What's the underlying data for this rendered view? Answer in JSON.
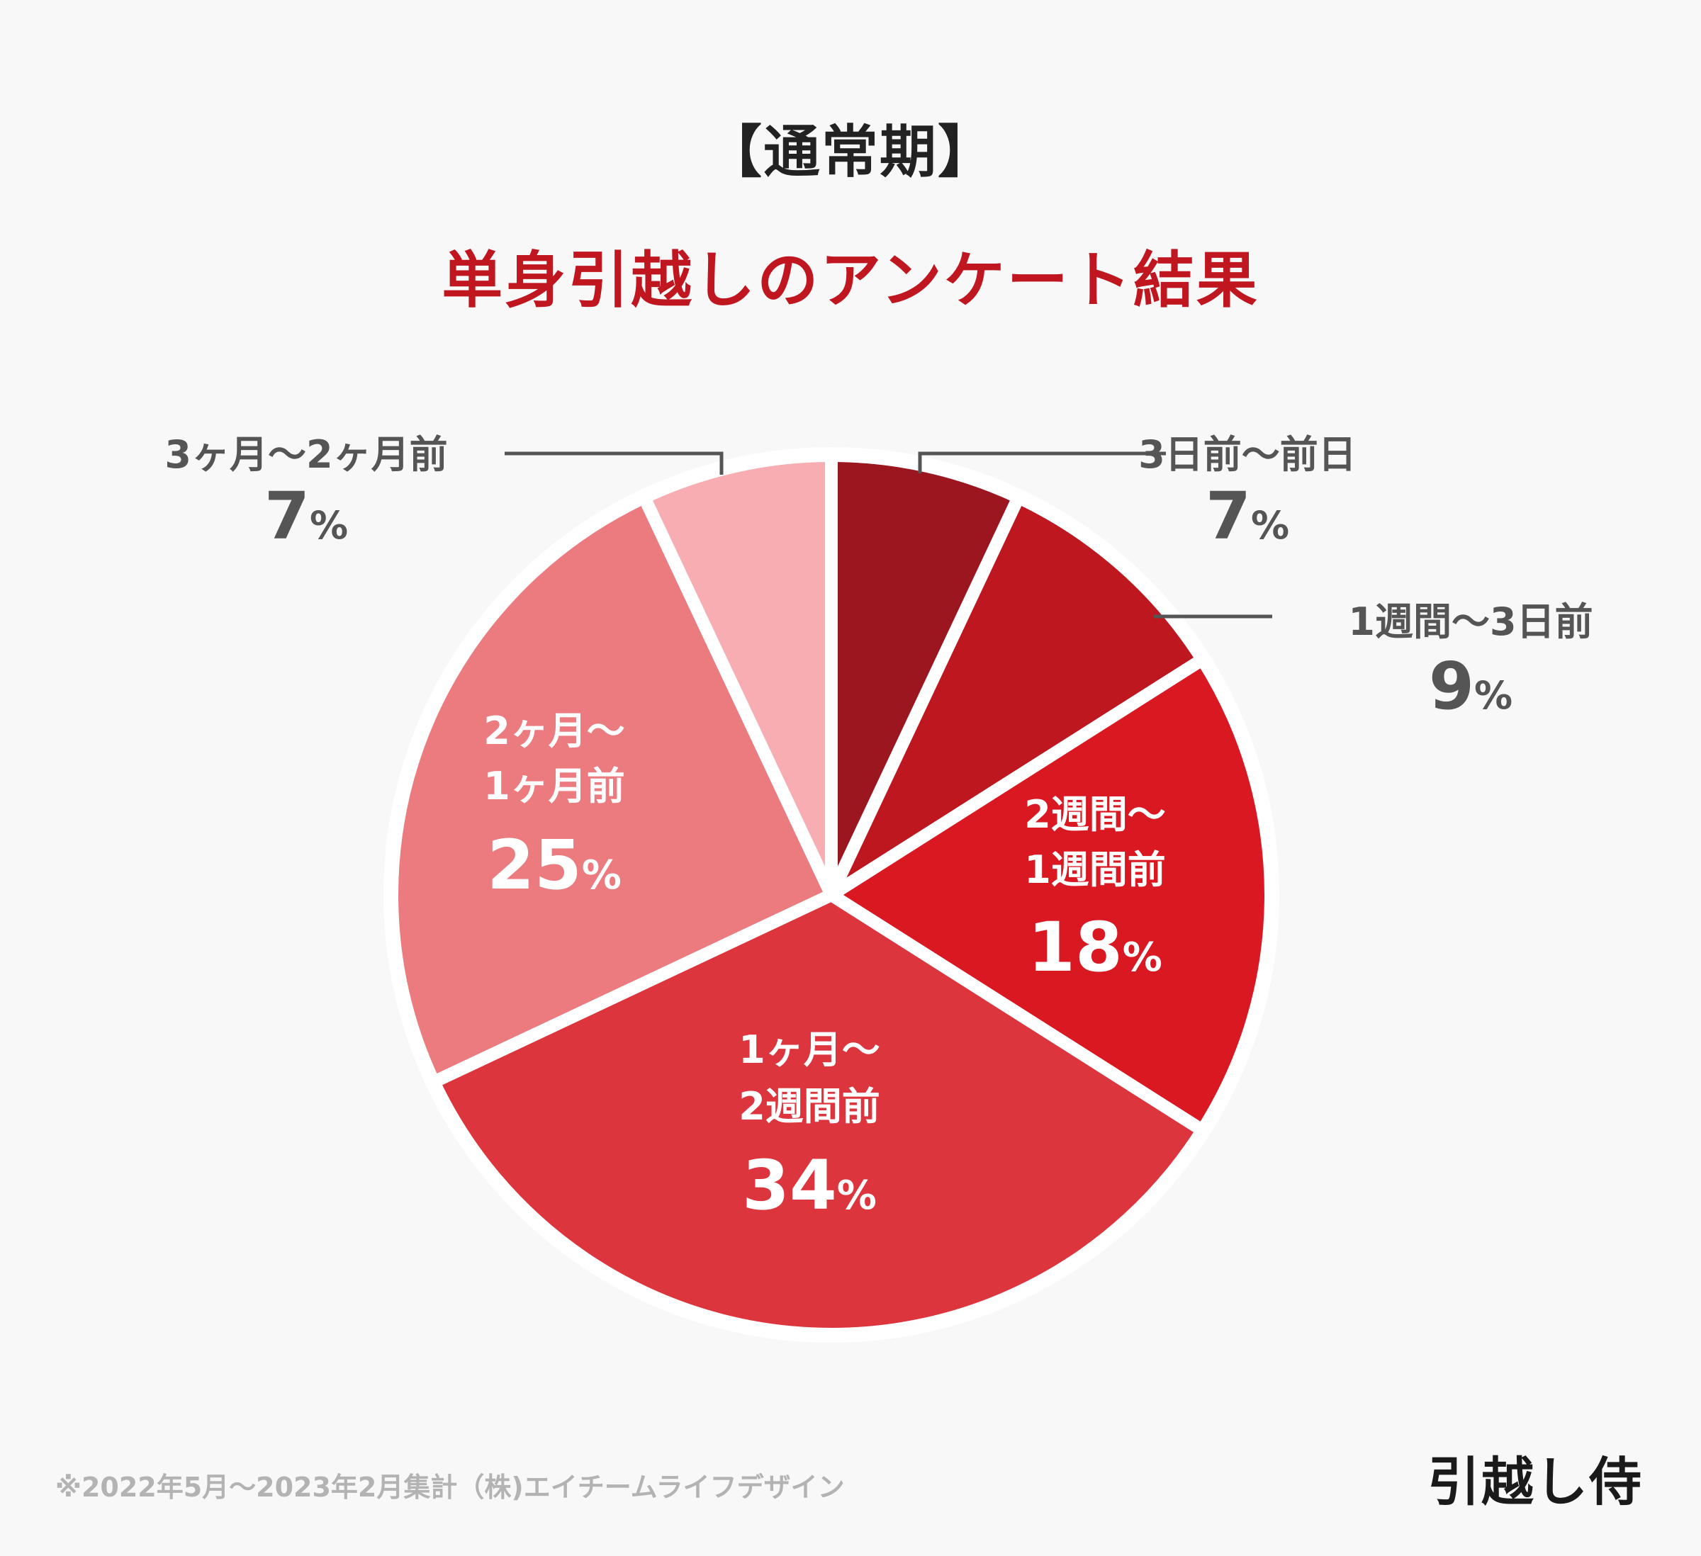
{
  "header": {
    "title": "【通常期】",
    "subtitle": "単身引越しのアンケート結果"
  },
  "chart_data": {
    "type": "pie",
    "start_angle_deg": 0,
    "direction": "clockwise",
    "slice_border_color": "#ffffff",
    "slices": [
      {
        "label": "3日前～前日",
        "value": 7,
        "value_text": "7",
        "color": "#9b161e",
        "label_position": "outside-right"
      },
      {
        "label": "1週間～3日前",
        "value": 9,
        "value_text": "9",
        "color": "#be1720",
        "label_position": "outside-right"
      },
      {
        "label": "2週間～1週間前",
        "label_lines": [
          "2週間～",
          "1週間前"
        ],
        "value": 18,
        "value_text": "18",
        "color": "#d91821",
        "label_position": "inside"
      },
      {
        "label": "1ヶ月～2週間前",
        "label_lines": [
          "1ヶ月～",
          "2週間前"
        ],
        "value": 34,
        "value_text": "34",
        "color": "#dc353d",
        "label_position": "inside"
      },
      {
        "label": "2ヶ月～1ヶ月前",
        "label_lines": [
          "2ヶ月～",
          "1ヶ月前"
        ],
        "value": 25,
        "value_text": "25",
        "color": "#ec7b80",
        "label_position": "inside"
      },
      {
        "label": "3ヶ月～2ヶ月前",
        "value": 7,
        "value_text": "7",
        "color": "#f7adb1",
        "label_position": "outside-left"
      }
    ],
    "percent_sign": "%"
  },
  "colors": {
    "background": "#f8f8f8",
    "title": "#222222",
    "subtitle": "#c0161f",
    "outside_label": "#555555",
    "inside_label": "#ffffff",
    "footnote": "#b3b3b3"
  },
  "footer": {
    "note": "※2022年5月～2023年2月集計（株)エイチームライフデザイン",
    "brand": "引越し侍"
  }
}
